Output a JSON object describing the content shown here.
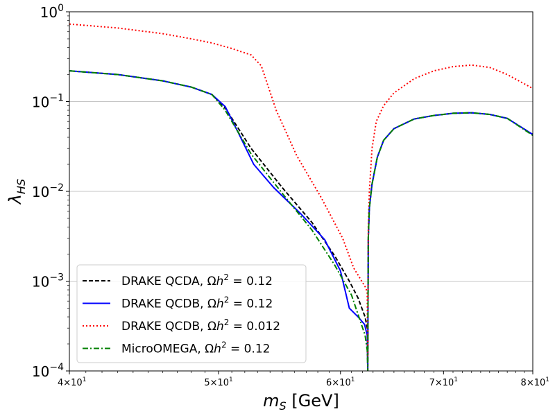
{
  "chart_data": {
    "type": "line",
    "title": "",
    "xlabel": "$m_S$ [GeV]",
    "ylabel": "$\\lambda_{HS}$",
    "xscale": "log",
    "yscale": "log",
    "xlim": [
      40,
      80
    ],
    "ylim": [
      0.0001,
      1
    ],
    "grid": "horizontal",
    "legend_position": "lower-left",
    "x_ticks": [
      {
        "value": 40,
        "mantissa": "4",
        "exponent": "1"
      },
      {
        "value": 50,
        "mantissa": "5",
        "exponent": "1"
      },
      {
        "value": 60,
        "mantissa": "6",
        "exponent": "1"
      },
      {
        "value": 70,
        "mantissa": "7",
        "exponent": "1"
      },
      {
        "value": 80,
        "mantissa": "8",
        "exponent": "1"
      }
    ],
    "y_ticks": [
      {
        "value": 0.0001,
        "exponent": "−4"
      },
      {
        "value": 0.001,
        "exponent": "−3"
      },
      {
        "value": 0.01,
        "exponent": "−2"
      },
      {
        "value": 0.1,
        "exponent": "−1"
      },
      {
        "value": 1,
        "exponent": "0"
      }
    ],
    "series": [
      {
        "name": "DRAKE QCDA, Ωh² = 0.12",
        "label_prefix": "DRAKE QCDA, ",
        "label_omega": "0.12",
        "color": "#000000",
        "linestyle": "dashed",
        "x": [
          40,
          43,
          46,
          48,
          49.5,
          50.5,
          52.5,
          55,
          57.5,
          59.5,
          60.8,
          61.6,
          62.25,
          62.45,
          62.5,
          62.55,
          62.65,
          62.9,
          63.4,
          64,
          65,
          67,
          69,
          71,
          73,
          75,
          77,
          80
        ],
        "y": [
          0.22,
          0.2,
          0.17,
          0.145,
          0.12,
          0.085,
          0.03,
          0.011,
          0.0045,
          0.0019,
          0.001,
          0.00065,
          0.0004,
          0.0003,
          0.0001,
          0.003,
          0.0065,
          0.012,
          0.024,
          0.037,
          0.05,
          0.064,
          0.07,
          0.074,
          0.075,
          0.072,
          0.065,
          0.043
        ]
      },
      {
        "name": "DRAKE QCDB, Ωh² = 0.12",
        "label_prefix": "DRAKE QCDB, ",
        "label_omega": "0.12",
        "color": "#0000ff",
        "linestyle": "solid",
        "x": [
          40,
          43,
          46,
          48,
          49.5,
          50.5,
          51.5,
          52.7,
          54.3,
          56.5,
          58.6,
          60,
          60.8,
          61.6,
          62.2,
          62.45,
          62.5,
          62.55,
          62.65,
          62.9,
          63.4,
          64,
          65,
          67,
          69,
          71,
          73,
          75,
          77,
          80
        ],
        "y": [
          0.22,
          0.2,
          0.17,
          0.145,
          0.12,
          0.088,
          0.045,
          0.02,
          0.011,
          0.0057,
          0.0029,
          0.0013,
          0.0005,
          0.0004,
          0.00033,
          0.00025,
          0.0001,
          0.003,
          0.0065,
          0.012,
          0.024,
          0.037,
          0.05,
          0.064,
          0.07,
          0.074,
          0.075,
          0.072,
          0.065,
          0.043
        ]
      },
      {
        "name": "DRAKE QCDB, Ωh² = 0.012",
        "label_prefix": "DRAKE QCDB, ",
        "label_omega": "0.012",
        "color": "#ff0000",
        "linestyle": "dotted",
        "x": [
          40,
          43,
          46,
          48,
          49.5,
          51,
          52.5,
          53.3,
          54.5,
          56.2,
          58.3,
          60.2,
          61.2,
          62.3,
          62.45,
          62.5,
          62.55,
          62.65,
          62.9,
          63.3,
          64,
          65,
          67,
          69,
          71,
          73,
          75,
          77,
          80
        ],
        "y": [
          0.73,
          0.66,
          0.57,
          0.5,
          0.45,
          0.39,
          0.33,
          0.25,
          0.08,
          0.025,
          0.0085,
          0.003,
          0.0014,
          0.00085,
          0.00075,
          0.0001,
          0.004,
          0.01,
          0.03,
          0.06,
          0.09,
          0.125,
          0.18,
          0.22,
          0.245,
          0.255,
          0.24,
          0.2,
          0.14
        ]
      },
      {
        "name": "MicroOMEGA, Ωh² = 0.12",
        "label_prefix": "MicroOMEGA, ",
        "label_omega": "0.12",
        "color": "#008000",
        "linestyle": "dashdot",
        "x": [
          40,
          43,
          46,
          48,
          49.5,
          50.5,
          52.5,
          55,
          57.5,
          59.5,
          61,
          62.25,
          62.45,
          62.5,
          62.55,
          62.65,
          62.9,
          63.4,
          64,
          65,
          67,
          69,
          71,
          73,
          75,
          77,
          80
        ],
        "y": [
          0.22,
          0.2,
          0.17,
          0.145,
          0.12,
          0.08,
          0.026,
          0.0095,
          0.0037,
          0.0015,
          0.0007,
          0.00025,
          0.00017,
          0.0001,
          0.003,
          0.0065,
          0.012,
          0.024,
          0.037,
          0.05,
          0.064,
          0.07,
          0.074,
          0.075,
          0.072,
          0.065,
          0.042
        ]
      }
    ]
  }
}
